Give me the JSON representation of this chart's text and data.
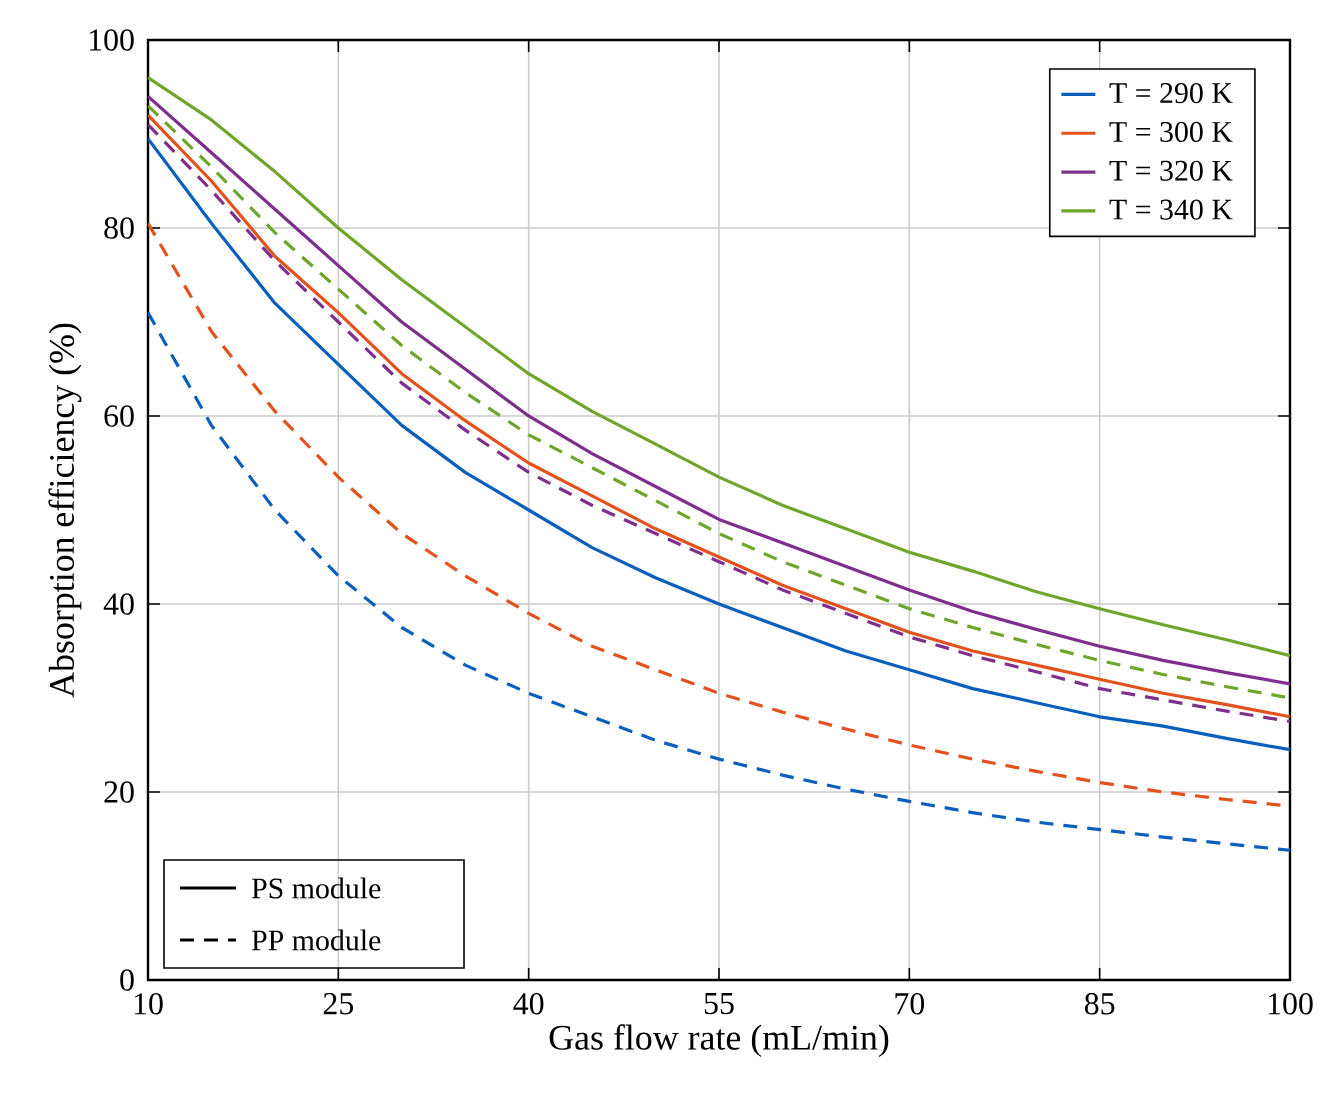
{
  "chart_data": {
    "type": "line",
    "xlabel": "Gas flow rate (mL/min)",
    "ylabel": "Absorption efficiency (%)",
    "x": [
      10,
      15,
      20,
      25,
      30,
      35,
      40,
      45,
      50,
      55,
      60,
      65,
      70,
      75,
      80,
      85,
      90,
      95,
      100
    ],
    "xlim": [
      10,
      100
    ],
    "xticks": [
      10,
      25,
      40,
      55,
      70,
      85,
      100
    ],
    "ylim": [
      0,
      100
    ],
    "yticks": [
      0,
      20,
      40,
      60,
      80,
      100
    ],
    "grid": true,
    "legend": "top right",
    "marker": "none",
    "annotations": [
      "PS module",
      "PP module"
    ],
    "series": [
      {
        "name": "T = 290 K",
        "color": "#0a5fbd",
        "line_style": "solid",
        "values": [
          89.5,
          80.5,
          72,
          65.5,
          59,
          54,
          50,
          46,
          42.8,
          40,
          37.5,
          35,
          33,
          31,
          29.5,
          28,
          27,
          25.7,
          24.5
        ]
      },
      {
        "name": "T = 300 K",
        "color": "#e2521c",
        "line_style": "solid",
        "values": [
          92,
          85,
          77,
          71,
          64.5,
          59.5,
          55,
          51.5,
          48,
          45,
          42,
          39.5,
          37,
          35,
          33.5,
          32,
          30.5,
          29.3,
          28
        ]
      },
      {
        "name": "T = 320 K",
        "color": "#7e2f8e",
        "line_style": "solid",
        "values": [
          94,
          88,
          82,
          76,
          70,
          65,
          60,
          56,
          52.5,
          49,
          46.5,
          44,
          41.5,
          39.2,
          37.3,
          35.5,
          34,
          32.7,
          31.5
        ]
      },
      {
        "name": "T = 340 K",
        "color": "#6fa52a",
        "line_style": "solid",
        "values": [
          96,
          91.5,
          86,
          80,
          74.5,
          69.5,
          64.5,
          60.5,
          57,
          53.5,
          50.5,
          48,
          45.5,
          43.5,
          41.3,
          39.5,
          37.8,
          36.2,
          34.5
        ]
      },
      {
        "color": "#0a5fbd",
        "line_style": "dashed",
        "values": [
          71,
          59,
          50,
          43,
          37.5,
          33.5,
          30.5,
          28,
          25.5,
          23.5,
          21.8,
          20.3,
          19,
          17.8,
          16.8,
          16,
          15.2,
          14.5,
          13.8
        ]
      },
      {
        "color": "#e2521c",
        "line_style": "dashed",
        "values": [
          80.5,
          69,
          60.5,
          53.5,
          47.5,
          43,
          39,
          35.5,
          33,
          30.5,
          28.5,
          26.7,
          25,
          23.5,
          22.2,
          21,
          20,
          19.2,
          18.5
        ]
      },
      {
        "color": "#7e2f8e",
        "line_style": "dashed",
        "values": [
          91,
          84,
          76.5,
          70,
          63.5,
          58.5,
          54,
          50.5,
          47.5,
          44.5,
          41.5,
          39,
          36.5,
          34.5,
          32.8,
          31,
          29.8,
          28.6,
          27.5
        ]
      },
      {
        "color": "#6fa52a",
        "line_style": "dashed",
        "values": [
          93,
          86.5,
          79.5,
          73.5,
          67.5,
          62.5,
          58,
          54.5,
          51,
          47.5,
          44.5,
          42,
          39.5,
          37.5,
          35.7,
          34,
          32.5,
          31.2,
          30
        ]
      }
    ]
  }
}
